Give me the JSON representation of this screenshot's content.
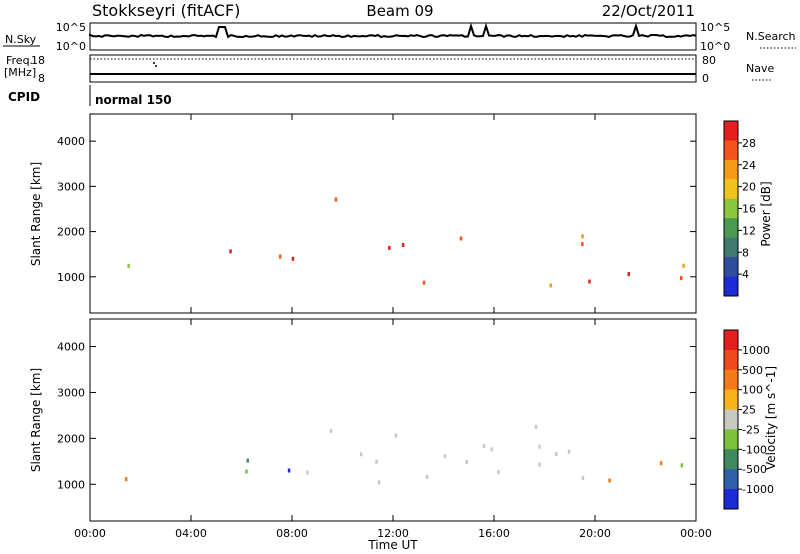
{
  "header": {
    "station": "Stokkseyri (fitACF)",
    "beam": "Beam 09",
    "date": "22/Oct/2011"
  },
  "status_panel": {
    "nsky_label": "N.Sky",
    "nsearch_label": "N.Search",
    "freq_label_1": "Freq.",
    "freq_label_2": "[MHz]",
    "nave_label": "Nave",
    "cpid_label": "CPID",
    "cpid_value": "normal 150",
    "noise_ticks_left": [
      "10^5",
      "10^0"
    ],
    "noise_ticks_right": [
      "10^5",
      "10^0"
    ],
    "freq_ticks": [
      "18",
      "8"
    ],
    "nave_ticks": [
      "80",
      "0"
    ]
  },
  "chart_data": [
    {
      "type": "heatmap",
      "name": "power",
      "ylabel": "Slant Range [km]",
      "ylim": [
        200,
        4600
      ],
      "yticks": [
        "1000",
        "2000",
        "3000",
        "4000"
      ],
      "colorbar_label": "Power [dB]",
      "colorbar_ticks": [
        "28",
        "24",
        "20",
        "16",
        "12",
        "8",
        "4"
      ],
      "colors": [
        "#1c2bd6",
        "#2f4f9e",
        "#3f7a6e",
        "#4b9a52",
        "#8cc63e",
        "#f0c21d",
        "#f79a1a",
        "#f2541b",
        "#e41f1f"
      ],
      "regions": [
        {
          "x": [
            0.5,
            2.0
          ],
          "y": [
            1100,
            1700
          ],
          "class": "mid"
        },
        {
          "x": [
            5.0,
            8.0
          ],
          "y": [
            900,
            1700
          ],
          "class": "strong"
        },
        {
          "x": [
            8.5,
            10.0
          ],
          "y": [
            2600,
            3400
          ],
          "class": "strong"
        },
        {
          "x": [
            9.0,
            21.0
          ],
          "y": [
            1600,
            2000
          ],
          "class": "strong"
        },
        {
          "x": [
            10.0,
            20.0
          ],
          "y": [
            800,
            1100
          ],
          "class": "strong"
        },
        {
          "x": [
            20.5,
            24.0
          ],
          "y": [
            800,
            1500
          ],
          "class": "strong"
        }
      ]
    },
    {
      "type": "heatmap",
      "name": "velocity",
      "xlabel": "Time UT",
      "ylabel": "Slant Range [km]",
      "ylim": [
        200,
        4600
      ],
      "yticks": [
        "1000",
        "2000",
        "3000",
        "4000"
      ],
      "xticks": [
        "00:00",
        "04:00",
        "08:00",
        "12:00",
        "16:00",
        "20:00",
        "00:00"
      ],
      "colorbar_label": "Velocity [m s^-1]",
      "colorbar_ticks": [
        "1000",
        "500",
        "100",
        "25",
        "-25",
        "-100",
        "-500",
        "-1000"
      ],
      "colors": [
        "#1c2bd6",
        "#2e5fa8",
        "#3f8a5e",
        "#7bc23a",
        "#c8c8c2",
        "#f7b41a",
        "#f77a1a",
        "#ef4a1b",
        "#e41f1f"
      ],
      "regions": [
        {
          "x": [
            0.5,
            2.0
          ],
          "y": [
            1100,
            1700
          ],
          "class": "mixed"
        },
        {
          "x": [
            5.0,
            8.0
          ],
          "y": [
            1000,
            1800
          ],
          "class": "mixed"
        },
        {
          "x": [
            8.5,
            20.0
          ],
          "y": [
            900,
            2300
          ],
          "class": "ground-scatter"
        },
        {
          "x": [
            20.5,
            24.0
          ],
          "y": [
            900,
            1600
          ],
          "class": "away"
        }
      ]
    }
  ]
}
